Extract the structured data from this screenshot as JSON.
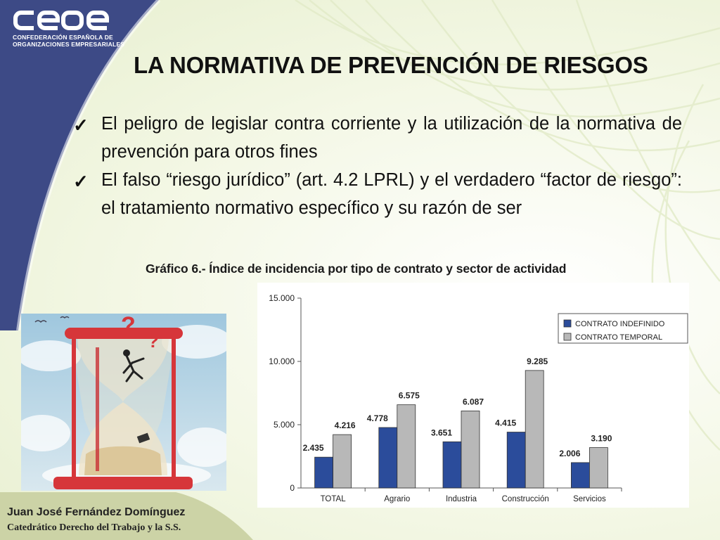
{
  "logo": {
    "mark": "ceoe",
    "line1": "CONFEDERACIÓN ESPAÑOLA DE",
    "line2": "ORGANIZACIONES EMPRESARIALES"
  },
  "title": "LA NORMATIVA DE PREVENCIÓN DE RIESGOS",
  "bullets": [
    {
      "icon": "check-icon",
      "text": "El peligro de legislar contra corriente y la utilización de la normativa de prevención para otros fines"
    },
    {
      "icon": "check-icon",
      "text": "El falso “riesgo jurídico” (art. 4.2 LPRL) y el verdadero “factor de riesgo”: el tratamiento normativo específico y su razón de ser"
    }
  ],
  "chart_caption": "Gráfico 6.- Índice de incidencia por tipo de contrato y sector de actividad",
  "chart_data": {
    "type": "bar",
    "title": "",
    "xlabel": "",
    "ylabel": "",
    "categories": [
      "TOTAL",
      "Agrario",
      "Industria",
      "Construcción",
      "Servicios"
    ],
    "series": [
      {
        "name": "CONTRATO INDEFINIDO",
        "values": [
          2435,
          4778,
          3651,
          4415,
          2006
        ],
        "labels": [
          "2.435",
          "4.778",
          "3.651",
          "4.415",
          "2.006"
        ],
        "color": "#2b4c9b"
      },
      {
        "name": "CONTRATO TEMPORAL",
        "values": [
          4216,
          6575,
          6087,
          9285,
          3190
        ],
        "labels": [
          "4.216",
          "6.575",
          "6.087",
          "9.285",
          "3.190"
        ],
        "color": "#b8b8b8"
      }
    ],
    "ylim": [
      0,
      15000
    ],
    "yticks": [
      0,
      5000,
      10000,
      15000
    ],
    "ytick_labels": [
      "0",
      "5.000",
      "10.000",
      "15.000"
    ],
    "grid": false,
    "legend": "top-right"
  },
  "illustration": {
    "icon": "hourglass-businessman-illustration"
  },
  "footer": {
    "author": "Juan José Fernández Domínguez",
    "position": "Catedrático Derecho del Trabajo y la S.S."
  },
  "colors": {
    "band": "#3d4a86",
    "indefinido": "#2b4c9b",
    "temporal": "#b8b8b8",
    "background": "#f4f6ea"
  }
}
